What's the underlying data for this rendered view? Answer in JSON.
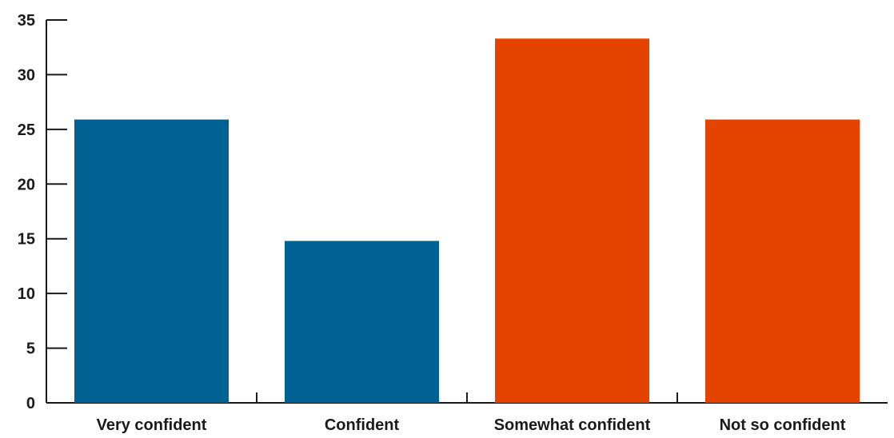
{
  "chart_data": {
    "type": "bar",
    "categories": [
      "Very confident",
      "Confident",
      "Somewhat confident",
      "Not so confident"
    ],
    "values": [
      25.9,
      14.8,
      33.3,
      25.9
    ],
    "bar_colors": [
      "#006192",
      "#006192",
      "#e54400",
      "#e54400"
    ],
    "ylim": [
      0,
      35
    ],
    "yticks": [
      0,
      5,
      10,
      15,
      20,
      25,
      30,
      35
    ],
    "title": "",
    "xlabel": "",
    "ylabel": "",
    "grid": false,
    "legend": "none"
  }
}
